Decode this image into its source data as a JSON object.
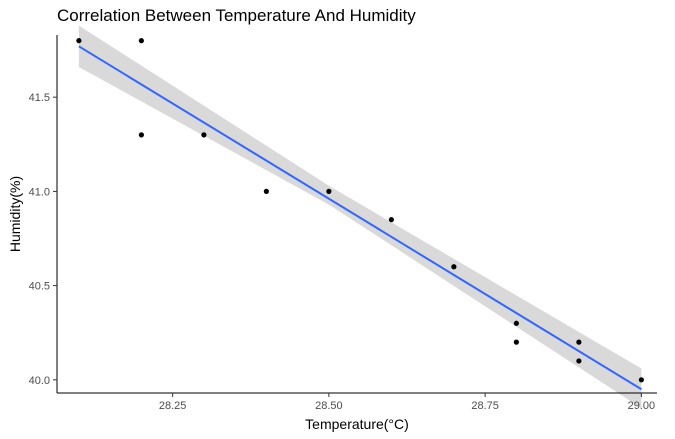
{
  "chart_data": {
    "type": "scatter",
    "title": "Correlation Between Temperature And Humidity",
    "xlabel": "Temperature(°C)",
    "ylabel": "Humidity(%)",
    "xlim": [
      28.065,
      29.025
    ],
    "ylim": [
      39.93,
      41.83
    ],
    "x_ticks": [
      28.25,
      28.5,
      28.75,
      29.0
    ],
    "x_tick_labels": [
      "28.25",
      "28.50",
      "28.75",
      "29.00"
    ],
    "y_ticks": [
      40.0,
      40.5,
      41.0,
      41.5
    ],
    "y_tick_labels": [
      "40.0",
      "40.5",
      "41.0",
      "41.5"
    ],
    "grid": false,
    "points": [
      {
        "x": 28.1,
        "y": 41.8
      },
      {
        "x": 28.2,
        "y": 41.8
      },
      {
        "x": 28.2,
        "y": 41.3
      },
      {
        "x": 28.3,
        "y": 41.3
      },
      {
        "x": 28.4,
        "y": 41.0
      },
      {
        "x": 28.5,
        "y": 41.0
      },
      {
        "x": 28.6,
        "y": 40.85
      },
      {
        "x": 28.7,
        "y": 40.6
      },
      {
        "x": 28.8,
        "y": 40.3
      },
      {
        "x": 28.8,
        "y": 40.2
      },
      {
        "x": 28.9,
        "y": 40.2
      },
      {
        "x": 28.9,
        "y": 40.1
      },
      {
        "x": 29.0,
        "y": 40.0
      }
    ],
    "trendline": {
      "method": "linear",
      "x": [
        28.1,
        29.0
      ],
      "y": [
        41.77,
        39.95
      ],
      "confidence_band": [
        {
          "x": 28.1,
          "lower": 41.66,
          "upper": 41.88
        },
        {
          "x": 28.5,
          "lower": 40.93,
          "upper": 41.03
        },
        {
          "x": 29.0,
          "lower": 39.85,
          "upper": 40.06
        }
      ]
    },
    "colors": {
      "points": "#000000",
      "line": "#3366ff",
      "band": "#d9d9d9",
      "axis": "#000000",
      "tick_text": "#4d4d4d"
    }
  }
}
